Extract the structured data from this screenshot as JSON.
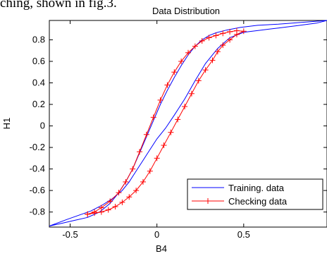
{
  "caption": "ching, shown in fig.3.",
  "chart_data": {
    "type": "line",
    "title": "Data Distribution",
    "xlabel": "B4",
    "ylabel": "H1",
    "xlim": [
      -0.62,
      0.98
    ],
    "ylim": [
      -0.94,
      0.98
    ],
    "xticks": [
      -0.5,
      0,
      0.5
    ],
    "yticks": [
      -0.8,
      -0.6,
      -0.4,
      -0.2,
      0,
      0.2,
      0.4,
      0.6,
      0.8
    ],
    "xtick_labels": [
      "-0.5",
      "0",
      "0.5"
    ],
    "ytick_labels": [
      "-0.8",
      "-0.6",
      "-0.4",
      "-0.2",
      "0",
      "0.2",
      "0.4",
      "0.6",
      "0.8"
    ],
    "legend_position": "bottom-right",
    "grid": false,
    "series": [
      {
        "name": "Training. data",
        "color": "#0000ff",
        "marker": "none",
        "x": [
          -0.62,
          -0.55,
          -0.48,
          -0.4,
          -0.33,
          -0.27,
          -0.22,
          -0.18,
          -0.14,
          -0.1,
          -0.06,
          -0.02,
          0.02,
          0.06,
          0.1,
          0.14,
          0.18,
          0.22,
          0.26,
          0.3,
          0.34,
          0.4,
          0.48,
          0.58,
          0.7,
          0.98,
          0.92,
          0.8,
          0.7,
          0.6,
          0.5,
          0.42,
          0.35,
          0.28,
          0.22,
          0.16,
          0.1,
          0.05,
          0.0,
          -0.04,
          -0.08,
          -0.12,
          -0.16,
          -0.2,
          -0.26,
          -0.32,
          -0.38,
          -0.45,
          -0.52,
          -0.62
        ],
        "y": [
          -0.93,
          -0.905,
          -0.88,
          -0.85,
          -0.8,
          -0.72,
          -0.62,
          -0.52,
          -0.4,
          -0.25,
          -0.1,
          0.05,
          0.2,
          0.33,
          0.45,
          0.56,
          0.66,
          0.74,
          0.8,
          0.84,
          0.865,
          0.89,
          0.915,
          0.935,
          0.945,
          0.98,
          0.955,
          0.93,
          0.91,
          0.89,
          0.87,
          0.82,
          0.72,
          0.58,
          0.42,
          0.25,
          0.1,
          -0.02,
          -0.12,
          -0.22,
          -0.32,
          -0.42,
          -0.52,
          -0.6,
          -0.68,
          -0.74,
          -0.79,
          -0.83,
          -0.87,
          -0.93
        ]
      },
      {
        "name": "Checking data",
        "color": "#ff0000",
        "marker": "+",
        "x": [
          -0.4,
          -0.36,
          -0.32,
          -0.27,
          -0.22,
          -0.18,
          -0.14,
          -0.1,
          -0.06,
          -0.02,
          0.02,
          0.06,
          0.1,
          0.14,
          0.18,
          0.22,
          0.26,
          0.3,
          0.34,
          0.38,
          0.42,
          0.46,
          0.5,
          0.46,
          0.42,
          0.38,
          0.35,
          0.32,
          0.28,
          0.24,
          0.2,
          0.16,
          0.12,
          0.08,
          0.04,
          0.0,
          -0.04,
          -0.08,
          -0.12,
          -0.16,
          -0.2,
          -0.24,
          -0.28,
          -0.32,
          -0.36,
          -0.4
        ],
        "y": [
          -0.82,
          -0.8,
          -0.76,
          -0.7,
          -0.62,
          -0.52,
          -0.4,
          -0.24,
          -0.08,
          0.08,
          0.24,
          0.38,
          0.5,
          0.6,
          0.68,
          0.74,
          0.79,
          0.82,
          0.84,
          0.86,
          0.875,
          0.885,
          0.88,
          0.85,
          0.8,
          0.75,
          0.69,
          0.61,
          0.52,
          0.42,
          0.3,
          0.18,
          0.06,
          -0.06,
          -0.18,
          -0.3,
          -0.42,
          -0.52,
          -0.6,
          -0.66,
          -0.71,
          -0.75,
          -0.78,
          -0.8,
          -0.81,
          -0.82
        ]
      }
    ]
  }
}
